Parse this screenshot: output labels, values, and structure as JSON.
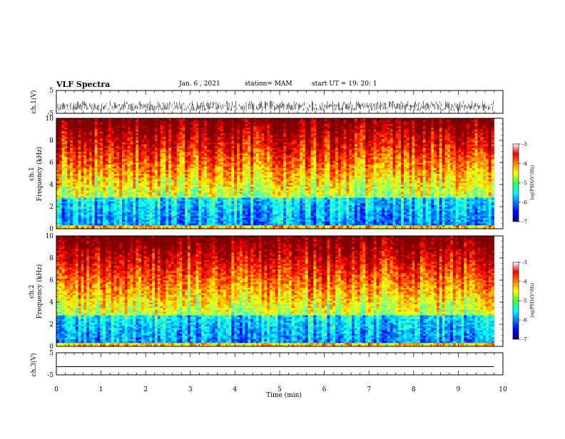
{
  "header": {
    "title": "VLF Spectra",
    "date": "Jan. 6 , 2021",
    "station": "station= MAM",
    "start_time": "start UT = 19: 20: 1"
  },
  "chart_data": [
    {
      "type": "line",
      "id": "ch1-waveform",
      "ylabel": "ch.1(V)",
      "ylim": [
        -5,
        5
      ],
      "y_ticks": [
        "5",
        "-5"
      ],
      "xlim": [
        0,
        10
      ],
      "color": "#000000",
      "description_of_signal": "dense noisy trace mostly between 0 and -4 V"
    },
    {
      "type": "heatmap",
      "id": "ch1-spectrogram",
      "ylabel_line1": "ch.1",
      "ylabel_line2": "Frequency (kHz)",
      "ylim": [
        0,
        10
      ],
      "y_ticks": [
        "0",
        "2",
        "4",
        "6",
        "8",
        "10"
      ],
      "xlim": [
        0,
        10
      ],
      "data_end_min": 9.8,
      "colorbar": {
        "label": "log(PSD)(V²/Hz)",
        "range": [
          -7,
          -3
        ],
        "ticks": [
          "-3",
          "-4",
          "-5",
          "-6",
          "-7"
        ]
      },
      "colormap": "jet"
    },
    {
      "type": "heatmap",
      "id": "ch2-spectrogram",
      "ylabel_line1": "ch.2",
      "ylabel_line2": "Frequency (kHz)",
      "ylim": [
        0,
        10
      ],
      "y_ticks": [
        "0",
        "2",
        "4",
        "6",
        "8",
        "10"
      ],
      "xlim": [
        0,
        10
      ],
      "data_end_min": 9.8,
      "colorbar": {
        "label": "log(PSD)(V²/Hz)",
        "range": [
          -7,
          -3
        ],
        "ticks": [
          "-3",
          "-4",
          "-5",
          "-6",
          "-7"
        ]
      },
      "colormap": "jet"
    },
    {
      "type": "line",
      "id": "ch3-waveform",
      "ylabel": "ch.3(V)",
      "ylim": [
        -5,
        5
      ],
      "y_ticks": [
        "5",
        "-5"
      ],
      "xlim": [
        0,
        10
      ],
      "x_ticks": [
        "0",
        "1",
        "2",
        "3",
        "4",
        "5",
        "6",
        "7",
        "8",
        "9",
        "10"
      ],
      "xlabel": "Time (min)",
      "constant_value": -1.3,
      "color": "#000000"
    }
  ]
}
